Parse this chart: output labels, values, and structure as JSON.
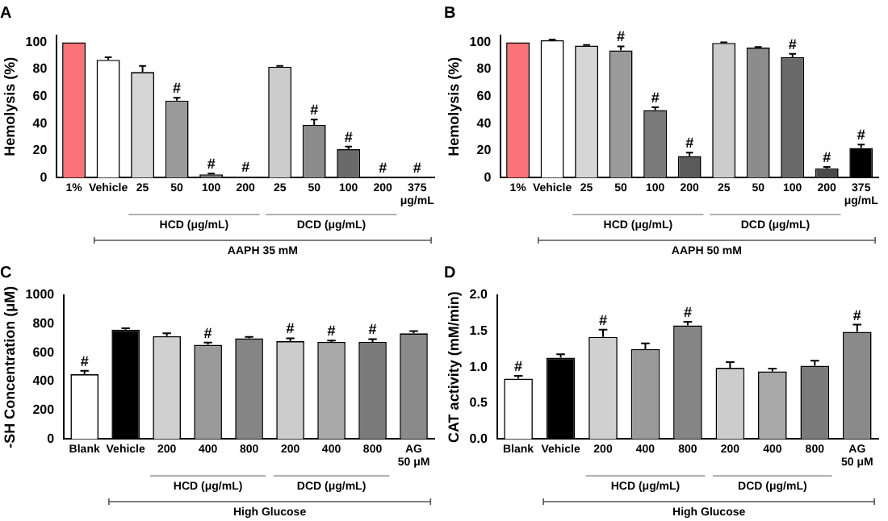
{
  "chart_data": [
    {
      "type": "bar",
      "title": "A",
      "ylabel": "Hemolysis (%)",
      "categories": [
        "1%",
        "Vehicle",
        "25",
        "50",
        "100",
        "200",
        "25",
        "50",
        "100",
        "200",
        "375\nμg/mL"
      ],
      "values": [
        100,
        87,
        78,
        57,
        2.5,
        1,
        82,
        39,
        21,
        0.5,
        0.3
      ],
      "errors": [
        null,
        2,
        4.5,
        2,
        0.5,
        null,
        0.5,
        4,
        2,
        null,
        null
      ],
      "value_labels": [
        null,
        null,
        null,
        "#",
        "#",
        "#",
        null,
        "#",
        "#",
        "#",
        "#"
      ],
      "colors": [
        "#f97378",
        "#ffffff",
        "#d6d6d6",
        "#9a9a9a",
        "#7a7a7a",
        "#5a5a5a",
        "#cccccc",
        "#8c8c8c",
        "#6a6a6a",
        "#4a4a4a",
        "#000000"
      ],
      "ylim": [
        0,
        105
      ],
      "yticks": [
        0,
        20,
        40,
        60,
        80,
        100
      ],
      "grid": false,
      "annotations": [
        "HCD (μg/mL)",
        "DCD (μg/mL)",
        "AAPH 35 mM"
      ]
    },
    {
      "type": "bar",
      "title": "B",
      "ylabel": "Hemolysis (%)",
      "categories": [
        "1%",
        "Vehicle",
        "25",
        "50",
        "100",
        "200",
        "25",
        "50",
        "100",
        "200",
        "375\nμg/mL"
      ],
      "values": [
        100,
        101.5,
        97.5,
        94,
        50,
        16,
        99.5,
        96,
        89,
        7,
        22
      ],
      "errors": [
        null,
        0.5,
        0.5,
        3,
        2,
        2.5,
        0.5,
        0.5,
        2.5,
        1,
        2.5
      ],
      "value_labels": [
        null,
        null,
        null,
        "#",
        "#",
        "#",
        null,
        null,
        "#",
        "#",
        "#"
      ],
      "colors": [
        "#f97378",
        "#ffffff",
        "#d6d6d6",
        "#9a9a9a",
        "#7a7a7a",
        "#5a5a5a",
        "#cccccc",
        "#8c8c8c",
        "#6a6a6a",
        "#4a4a4a",
        "#000000"
      ],
      "ylim": [
        0,
        105
      ],
      "yticks": [
        0,
        20,
        40,
        60,
        80,
        100
      ],
      "grid": false,
      "annotations": [
        "HCD (μg/mL)",
        "DCD (μg/mL)",
        "AAPH 50 mM"
      ]
    },
    {
      "type": "bar",
      "title": "C",
      "ylabel": "-SH Concentration (μM)",
      "categories": [
        "Blank",
        "Vehicle",
        "200",
        "400",
        "800",
        "200",
        "400",
        "800",
        "AG\n50 μM"
      ],
      "values": [
        450,
        760,
        715,
        655,
        700,
        680,
        675,
        675,
        735
      ],
      "errors": [
        25,
        10,
        20,
        15,
        10,
        20,
        10,
        20,
        15
      ],
      "value_labels": [
        "#",
        null,
        null,
        "#",
        null,
        "#",
        "#",
        "#",
        null
      ],
      "colors": [
        "#ffffff",
        "#000000",
        "#d0d0d0",
        "#9a9a9a",
        "#858585",
        "#cccccc",
        "#a8a8a8",
        "#7a7a7a",
        "#8a8a8a"
      ],
      "ylim": [
        0,
        1000
      ],
      "yticks": [
        0,
        200,
        400,
        600,
        800,
        1000
      ],
      "grid": false,
      "annotations": [
        "HCD (μg/mL)",
        "DCD (μg/mL)",
        "High Glucose"
      ]
    },
    {
      "type": "bar",
      "title": "D",
      "ylabel": "CAT activity (mM/min)",
      "categories": [
        "Blank",
        "Vehicle",
        "200",
        "400",
        "800",
        "200",
        "400",
        "800",
        "AG\n50 μM"
      ],
      "values": [
        0.84,
        1.13,
        1.42,
        1.25,
        1.58,
        0.99,
        0.94,
        1.02,
        1.49
      ],
      "errors": [
        0.04,
        0.05,
        0.1,
        0.08,
        0.05,
        0.08,
        0.04,
        0.07,
        0.1
      ],
      "value_labels": [
        "#",
        null,
        "#",
        null,
        "#",
        null,
        null,
        null,
        "#"
      ],
      "colors": [
        "#ffffff",
        "#000000",
        "#d0d0d0",
        "#9a9a9a",
        "#858585",
        "#cccccc",
        "#a8a8a8",
        "#7a7a7a",
        "#8a8a8a"
      ],
      "ylim": [
        0,
        2
      ],
      "yticks": [
        {
          "value": 0,
          "label": "0.0"
        },
        {
          "value": 0.5,
          "label": "0.5"
        },
        {
          "value": 1,
          "label": "1.0"
        },
        {
          "value": 1.5,
          "label": "1.5"
        },
        {
          "value": 2,
          "label": "2.0"
        }
      ],
      "grid": false,
      "annotations": [
        "HCD (μg/mL)",
        "DCD (μg/mL)",
        "High Glucose"
      ]
    }
  ]
}
